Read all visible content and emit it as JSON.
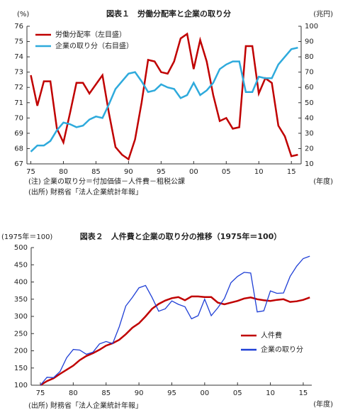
{
  "chart_data": [
    {
      "type": "line",
      "title": "図表１　労働分配率と企業の取り分",
      "ylabel": "(%)",
      "y2label": "(兆円)",
      "xlabel": "(年度)",
      "notes": [
        "(注) 企業の取り分＝付加価値－人件費－租税公課",
        "(出所) 財務省「法人企業統計年報」"
      ],
      "x": [
        1975,
        1976,
        1977,
        1978,
        1979,
        1980,
        1981,
        1982,
        1983,
        1984,
        1985,
        1986,
        1987,
        1988,
        1989,
        1990,
        1991,
        1992,
        1993,
        1994,
        1995,
        1996,
        1997,
        1998,
        1999,
        2000,
        2001,
        2002,
        2003,
        2004,
        2005,
        2006,
        2007,
        2008,
        2009,
        2010,
        2011,
        2012,
        2013,
        2014,
        2015,
        2016
      ],
      "series": [
        {
          "name": "労働分配率（左目盛）",
          "color": "#c00000",
          "values": [
            72.8,
            70.8,
            72.4,
            72.4,
            69.3,
            68.4,
            70.3,
            72.3,
            72.3,
            71.6,
            72.2,
            72.8,
            70.3,
            68.1,
            67.6,
            67.3,
            68.6,
            71.0,
            73.8,
            73.7,
            73.0,
            72.9,
            73.7,
            75.2,
            75.5,
            73.2,
            75.1,
            73.7,
            71.5,
            69.8,
            70.0,
            69.3,
            69.4,
            74.7,
            74.7,
            71.6,
            72.6,
            72.3,
            69.5,
            68.8,
            67.5,
            67.6
          ]
        },
        {
          "name": "企業の取り分（右目盛）",
          "color": "#2eaadc",
          "axis": "y2",
          "values": [
            18,
            22,
            22,
            25,
            32,
            37,
            36,
            34,
            35,
            39,
            41,
            40,
            49,
            59,
            64,
            69,
            70,
            64,
            57,
            58,
            62,
            60,
            59,
            53,
            55,
            63,
            55,
            58,
            63,
            72,
            75,
            77,
            77,
            57,
            57,
            67,
            66,
            66,
            75,
            80,
            85,
            86
          ]
        }
      ],
      "xlim": [
        1974.4,
        2016.5
      ],
      "xticks": [
        {
          "value": 1975,
          "label": "75"
        },
        {
          "value": 1980,
          "label": "80"
        },
        {
          "value": 1985,
          "label": "85"
        },
        {
          "value": 1990,
          "label": "90"
        },
        {
          "value": 1995,
          "label": "95"
        },
        {
          "value": 2000,
          "label": "00"
        },
        {
          "value": 2005,
          "label": "05"
        },
        {
          "value": 2010,
          "label": "10"
        },
        {
          "value": 2015,
          "label": "15"
        }
      ],
      "ylim": [
        67,
        76
      ],
      "yticks": [
        67,
        68,
        69,
        70,
        71,
        72,
        73,
        74,
        75,
        76
      ],
      "y2lim": [
        10,
        100
      ],
      "y2ticks": [
        10,
        20,
        30,
        40,
        50,
        60,
        70,
        80,
        90,
        100
      ],
      "legend": "upper left",
      "grid": false
    },
    {
      "type": "line",
      "title": "図表２　人件費と企業の取り分の推移（1975年＝100）",
      "ylabel": "(1975年＝100)",
      "xlabel": "(年度)",
      "notes": [
        "(出所) 財務省「法人企業統計年報」"
      ],
      "x": [
        1975,
        1976,
        1977,
        1978,
        1979,
        1980,
        1981,
        1982,
        1983,
        1984,
        1985,
        1986,
        1987,
        1988,
        1989,
        1990,
        1991,
        1992,
        1993,
        1994,
        1995,
        1996,
        1997,
        1998,
        1999,
        2000,
        2001,
        2002,
        2003,
        2004,
        2005,
        2006,
        2007,
        2008,
        2009,
        2010,
        2011,
        2012,
        2013,
        2014,
        2015,
        2016
      ],
      "series": [
        {
          "name": "人件費",
          "color": "#c00000",
          "values": [
            100,
            112,
            120,
            133,
            145,
            157,
            173,
            185,
            193,
            203,
            215,
            222,
            232,
            248,
            267,
            280,
            300,
            322,
            336,
            346,
            353,
            356,
            347,
            358,
            358,
            356,
            356,
            340,
            335,
            340,
            345,
            352,
            355,
            350,
            347,
            345,
            348,
            350,
            342,
            344,
            348,
            355
          ]
        },
        {
          "name": "企業の取り分",
          "color": "#1f3fd6",
          "values": [
            100,
            123,
            122,
            140,
            180,
            204,
            202,
            190,
            196,
            220,
            227,
            221,
            270,
            330,
            355,
            383,
            390,
            355,
            315,
            322,
            345,
            335,
            328,
            293,
            302,
            350,
            302,
            325,
            352,
            398,
            416,
            428,
            426,
            313,
            316,
            374,
            367,
            368,
            416,
            446,
            468,
            475
          ]
        }
      ],
      "xlim": [
        1973.6,
        2016.3
      ],
      "xticks": [
        {
          "value": 1975,
          "label": "75"
        },
        {
          "value": 1980,
          "label": "80"
        },
        {
          "value": 1985,
          "label": "85"
        },
        {
          "value": 1990,
          "label": "90"
        },
        {
          "value": 1995,
          "label": "95"
        },
        {
          "value": 2000,
          "label": "00"
        },
        {
          "value": 2005,
          "label": "05"
        },
        {
          "value": 2010,
          "label": "10"
        },
        {
          "value": 2015,
          "label": "15"
        }
      ],
      "ylim": [
        100,
        500
      ],
      "yticks": [
        100,
        150,
        200,
        250,
        300,
        350,
        400,
        450,
        500
      ],
      "legend": "lower right",
      "grid": false
    }
  ]
}
